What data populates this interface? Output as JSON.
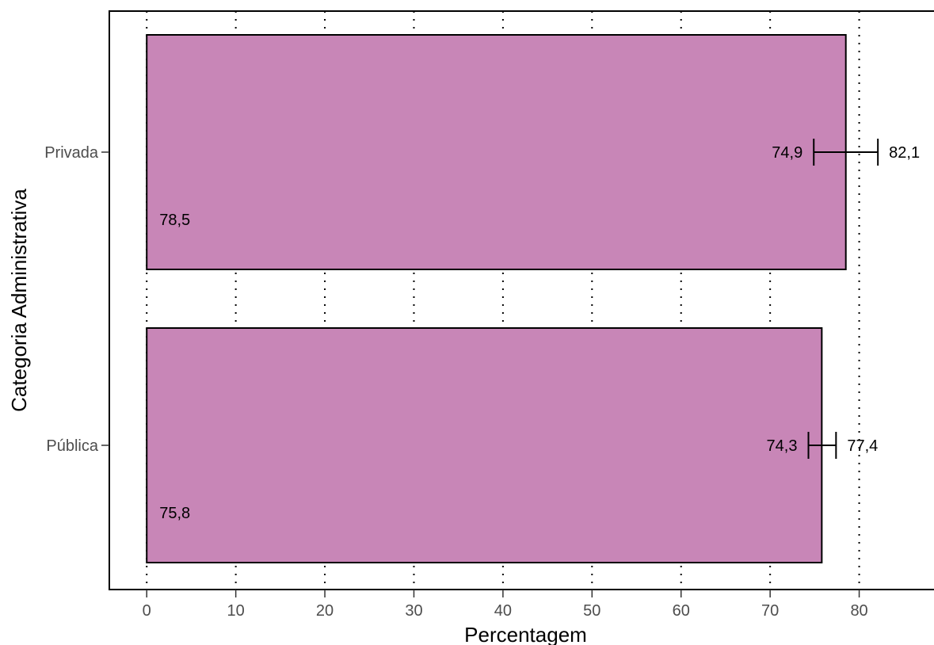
{
  "chart_data": {
    "type": "bar",
    "orientation": "horizontal",
    "title": "",
    "xlabel": "Percentagem",
    "ylabel": "Categoria Administrativa",
    "xlim": [
      -4.2,
      88.4
    ],
    "xticks": [
      0,
      10,
      20,
      30,
      40,
      50,
      60,
      70,
      80
    ],
    "grid": true,
    "bar_color": "#c886b7",
    "categories": [
      "Pública",
      "Privada"
    ],
    "series": [
      {
        "values": [
          75.8,
          78.5
        ],
        "value_labels": [
          "75,8",
          "78,5"
        ],
        "ci_lower": [
          74.3,
          74.9
        ],
        "ci_upper": [
          77.4,
          82.1
        ],
        "ci_lower_labels": [
          "74,3",
          "74,9"
        ],
        "ci_upper_labels": [
          "77,4",
          "82,1"
        ]
      }
    ]
  }
}
